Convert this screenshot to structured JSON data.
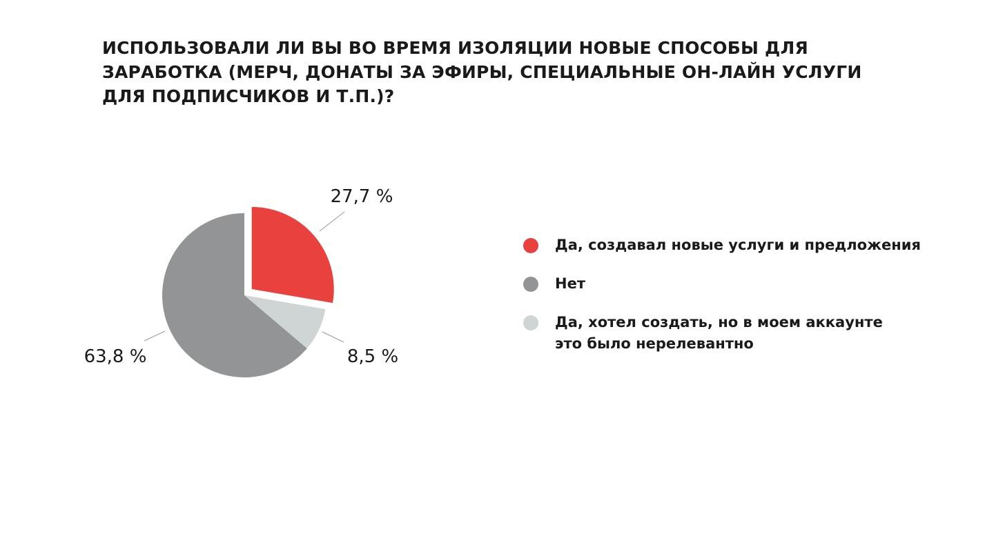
{
  "title_lines": [
    "ИСПОЛЬЗОВАЛИ ЛИ ВЫ ВО ВРЕМЯ ИЗОЛЯЦИИ НОВЫЕ СПОСОБЫ ДЛЯ",
    "ЗАРАБОТКА (МЕРЧ, ДОНАТЫ ЗА ЭФИРЫ, СПЕЦИАЛЬНЫЕ ОН-ЛАЙН УСЛУГИ",
    "ДЛЯ ПОДПИСЧИКОВ И Т.П.)?"
  ],
  "legend": [
    {
      "lines": [
        "Да, создавал новые услуги и предложения"
      ],
      "color": "#e8413e"
    },
    {
      "lines": [
        "Нет"
      ],
      "color": "#939496"
    },
    {
      "lines": [
        "Да, хотел создать, но в моем аккаунте",
        "это было нерелевантно"
      ],
      "color": "#cfd4d4"
    }
  ],
  "chart_data": {
    "type": "pie",
    "title": "ИСПОЛЬЗОВАЛИ ЛИ ВЫ ВО ВРЕМЯ ИЗОЛЯЦИИ НОВЫЕ СПОСОБЫ ДЛЯ ЗАРАБОТКА (МЕРЧ, ДОНАТЫ ЗА ЭФИРЫ, СПЕЦИАЛЬНЫЕ ОН-ЛАЙН УСЛУГИ ДЛЯ ПОДПИСЧИКОВ И Т.П.)?",
    "start_angle_deg": 0,
    "direction": "clockwise",
    "legend_position": "right",
    "slices": [
      {
        "category": "Да, создавал новые услуги и предложения",
        "value": 27.7,
        "label": "27,7 %",
        "color": "#e8413e",
        "exploded": true
      },
      {
        "category": "Да, хотел создать, но в моем аккаунте это было нерелевантно",
        "value": 8.5,
        "label": "8,5 %",
        "color": "#cfd4d4",
        "exploded": false
      },
      {
        "category": "Нет",
        "value": 63.8,
        "label": "63,8 %",
        "color": "#939496",
        "exploded": false
      }
    ]
  }
}
